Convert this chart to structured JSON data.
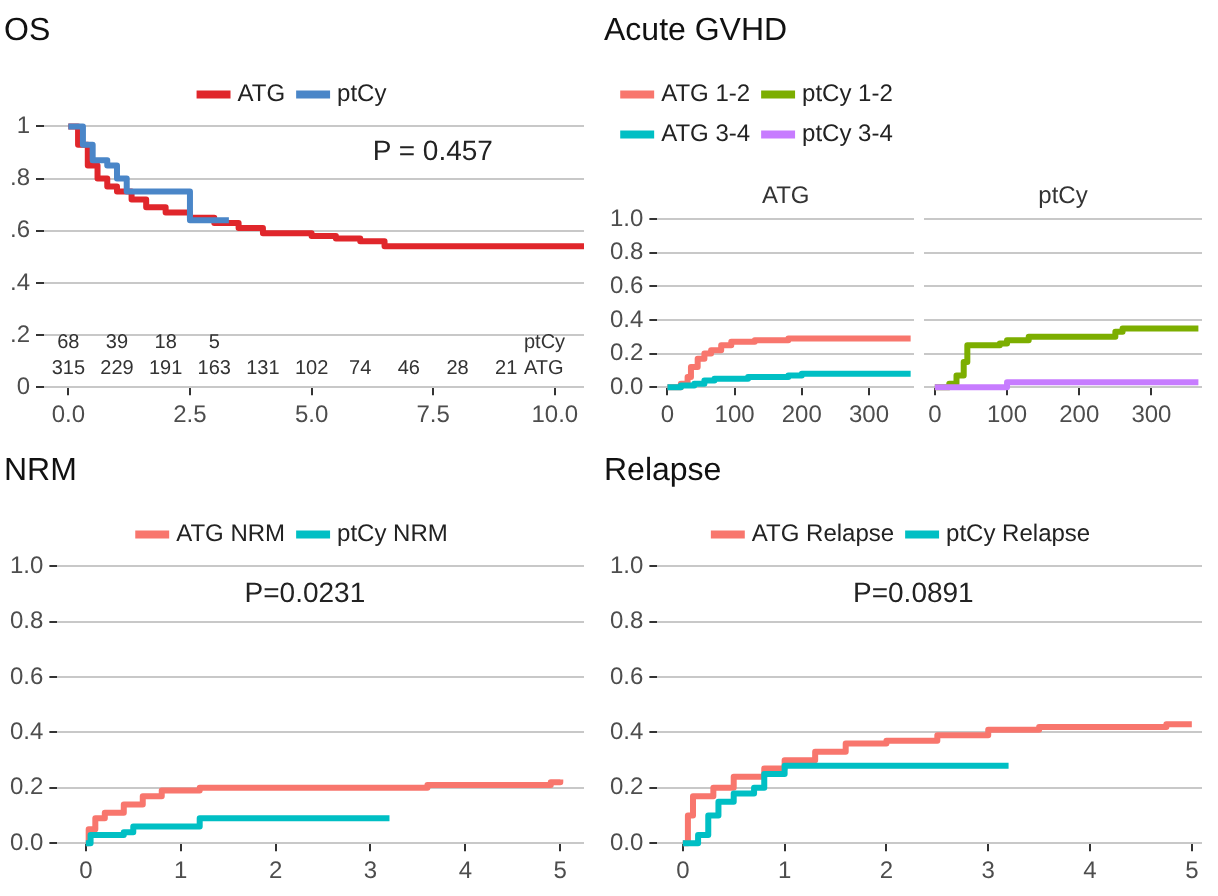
{
  "chart_data": [
    {
      "type": "step",
      "title": "OS",
      "legend": "top",
      "grid": "y",
      "xlim": [
        -0.5,
        10.6
      ],
      "ylim": [
        0,
        1
      ],
      "xticks": [
        {
          "value": 0,
          "label": "0.0"
        },
        2.5,
        {
          "value": 5,
          "label": "5.0"
        },
        7.5,
        {
          "value": 10,
          "label": "10.0"
        }
      ],
      "yticks": [
        0,
        {
          "value": 0.2,
          "label": ".2"
        },
        {
          "value": 0.4,
          "label": ".4"
        },
        {
          "value": 0.6,
          "label": ".6"
        },
        {
          "value": 0.8,
          "label": ".8"
        },
        1
      ],
      "series": [
        {
          "name": "ATG",
          "color": "#e0262b",
          "x": [
            0,
            0.2,
            0.4,
            0.6,
            0.8,
            1.0,
            1.3,
            1.6,
            2.0,
            2.5,
            3.0,
            3.5,
            4.0,
            5.0,
            5.5,
            6.0,
            6.5,
            10.6
          ],
          "values": [
            1.0,
            0.93,
            0.85,
            0.8,
            0.77,
            0.75,
            0.72,
            0.69,
            0.67,
            0.65,
            0.63,
            0.61,
            0.59,
            0.58,
            0.57,
            0.56,
            0.54,
            0.54
          ]
        },
        {
          "name": "ptCy",
          "color": "#4a86c8",
          "x": [
            0,
            0.3,
            0.5,
            0.8,
            1.0,
            1.2,
            2.5,
            3.3
          ],
          "values": [
            1.0,
            0.93,
            0.87,
            0.85,
            0.8,
            0.75,
            0.64,
            0.64
          ]
        }
      ],
      "annotations": [
        "P = 0.457",
        "68 39 18 5",
        "315 229 191 163 131 102 74 46 28 21",
        "ptCy",
        "ATG"
      ]
    },
    {
      "type": "step",
      "title": "Acute GVHD",
      "subtitle": "ATG",
      "legend": "top",
      "grid": "y",
      "xlim": [
        -15,
        367
      ],
      "ylim": [
        0,
        1
      ],
      "xticks": [
        0,
        100,
        200,
        300
      ],
      "yticks": [
        {
          "value": 0,
          "label": "0.0"
        },
        {
          "value": 0.2,
          "label": "0.2"
        },
        {
          "value": 0.4,
          "label": "0.4"
        },
        {
          "value": 0.6,
          "label": "0.6"
        },
        {
          "value": 0.8,
          "label": "0.8"
        },
        {
          "value": 1,
          "label": "1.0"
        }
      ],
      "series": [
        {
          "name": "ATG 1-2",
          "color": "#f8766d",
          "x": [
            0,
            20,
            30,
            35,
            45,
            55,
            65,
            80,
            95,
            130,
            180,
            362
          ],
          "values": [
            0,
            0.02,
            0.06,
            0.12,
            0.17,
            0.2,
            0.22,
            0.25,
            0.27,
            0.28,
            0.29,
            0.29
          ]
        },
        {
          "name": "ATG 3-4",
          "color": "#00bfc4",
          "x": [
            0,
            20,
            40,
            55,
            70,
            120,
            180,
            200,
            362
          ],
          "values": [
            0,
            0.01,
            0.02,
            0.04,
            0.05,
            0.06,
            0.07,
            0.08,
            0.08
          ]
        }
      ]
    },
    {
      "type": "step",
      "subtitle": "ptCy",
      "grid": "y",
      "tick_labels": "x",
      "xlim": [
        -15,
        370
      ],
      "ylim": [
        0,
        1
      ],
      "xticks": [
        0,
        100,
        200,
        300
      ],
      "yticks": [
        0,
        0.2,
        0.4,
        0.6,
        0.8,
        1
      ],
      "series": [
        {
          "name": "ptCy 1-2",
          "color": "#7cae00",
          "x": [
            0,
            20,
            30,
            40,
            45,
            90,
            100,
            130,
            250,
            260,
            365
          ],
          "values": [
            0,
            0.02,
            0.07,
            0.15,
            0.25,
            0.26,
            0.28,
            0.3,
            0.33,
            0.35,
            0.35
          ]
        },
        {
          "name": "ptCy 3-4",
          "color": "#c77cff",
          "x": [
            0,
            50,
            97,
            100,
            200,
            365
          ],
          "values": [
            0,
            0,
            0,
            0.03,
            0.03,
            0.03
          ]
        }
      ]
    },
    {
      "type": "step",
      "title": "NRM",
      "legend": "top",
      "grid": "y",
      "xlim": [
        -0.3,
        5.25
      ],
      "ylim": [
        0,
        1
      ],
      "xticks": [
        0,
        1,
        2,
        3,
        4,
        5
      ],
      "yticks": [
        {
          "value": 0,
          "label": "0.0"
        },
        {
          "value": 0.2,
          "label": "0.2"
        },
        {
          "value": 0.4,
          "label": "0.4"
        },
        {
          "value": 0.6,
          "label": "0.6"
        },
        {
          "value": 0.8,
          "label": "0.8"
        },
        {
          "value": 1,
          "label": "1.0"
        }
      ],
      "series": [
        {
          "name": "ATG NRM",
          "color": "#f8766d",
          "x": [
            0,
            0.03,
            0.1,
            0.2,
            0.4,
            0.6,
            0.8,
            1.2,
            3.5,
            3.6,
            4.9,
            5.0
          ],
          "values": [
            0,
            0.05,
            0.09,
            0.11,
            0.14,
            0.17,
            0.19,
            0.2,
            0.2,
            0.21,
            0.22,
            0.23
          ]
        },
        {
          "name": "ptCy NRM",
          "color": "#00bfc4",
          "x": [
            0,
            0.05,
            0.4,
            0.5,
            1.2,
            3.2
          ],
          "values": [
            0,
            0.03,
            0.04,
            0.06,
            0.09,
            0.09
          ]
        }
      ],
      "annotations": [
        "P=0.0231"
      ]
    },
    {
      "type": "step",
      "title": "Relapse",
      "legend": "top",
      "grid": "y",
      "xlim": [
        -0.25,
        5.1
      ],
      "ylim": [
        0,
        1
      ],
      "xticks": [
        0,
        1,
        2,
        3,
        4,
        5
      ],
      "yticks": [
        {
          "value": 0,
          "label": "0.0"
        },
        {
          "value": 0.2,
          "label": "0.2"
        },
        {
          "value": 0.4,
          "label": "0.4"
        },
        {
          "value": 0.6,
          "label": "0.6"
        },
        {
          "value": 0.8,
          "label": "0.8"
        },
        {
          "value": 1,
          "label": "1.0"
        }
      ],
      "series": [
        {
          "name": "ATG Relapse",
          "color": "#f8766d",
          "x": [
            0,
            0.05,
            0.1,
            0.3,
            0.5,
            0.8,
            1.0,
            1.3,
            1.6,
            2.0,
            2.5,
            3.0,
            3.5,
            4.7,
            4.75,
            5.0
          ],
          "values": [
            0,
            0.1,
            0.17,
            0.2,
            0.24,
            0.27,
            0.3,
            0.33,
            0.36,
            0.37,
            0.39,
            0.41,
            0.42,
            0.42,
            0.43,
            0.43
          ]
        },
        {
          "name": "ptCy Relapse",
          "color": "#00bfc4",
          "x": [
            0,
            0.15,
            0.25,
            0.35,
            0.5,
            0.7,
            0.8,
            1.0,
            3.2
          ],
          "values": [
            0,
            0.03,
            0.1,
            0.15,
            0.18,
            0.2,
            0.25,
            0.28,
            0.28
          ]
        }
      ],
      "annotations": [
        "P=0.0891"
      ]
    }
  ]
}
